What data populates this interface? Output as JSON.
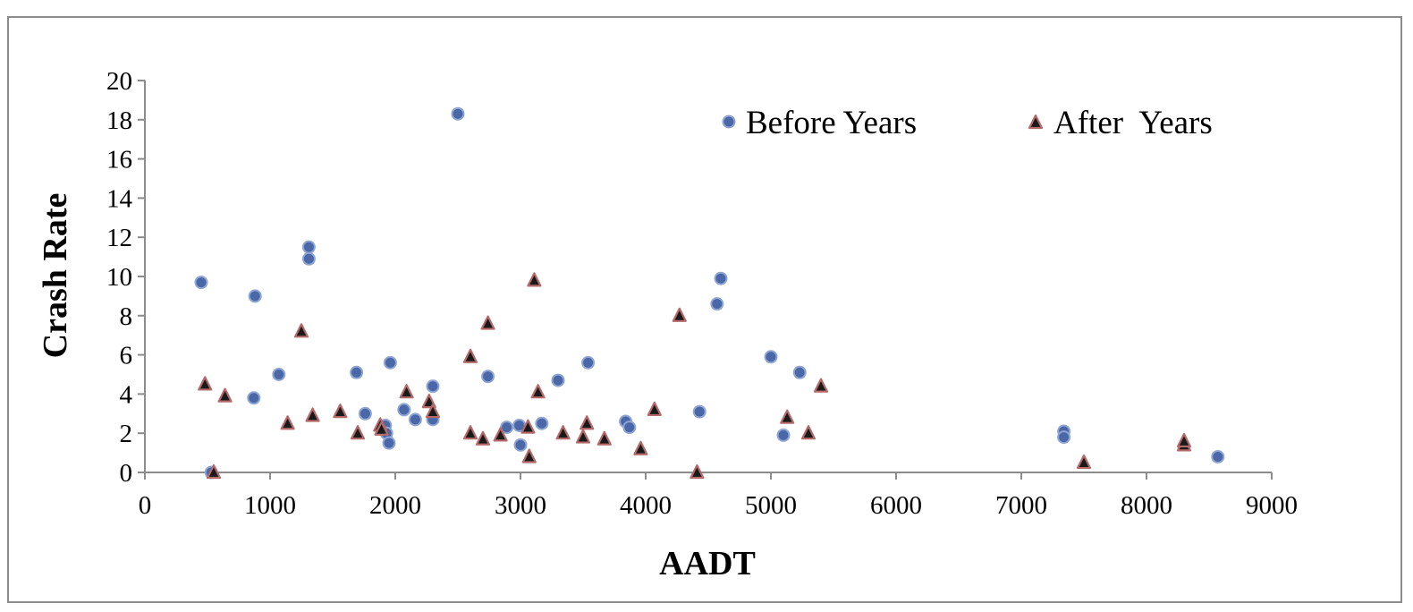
{
  "chart_data": {
    "type": "scatter",
    "title": "",
    "xlabel": "AADT",
    "ylabel": "Crash Rate",
    "xlim": [
      0,
      9000
    ],
    "ylim": [
      0,
      20
    ],
    "xticks": [
      0,
      1000,
      2000,
      3000,
      4000,
      5000,
      6000,
      7000,
      8000,
      9000
    ],
    "yticks": [
      0,
      2,
      4,
      6,
      8,
      10,
      12,
      14,
      16,
      18,
      20
    ],
    "grid": false,
    "legend_position": "top-right",
    "series": [
      {
        "name": "Before Years",
        "marker": "circle",
        "color": "#4a67a8",
        "edge_color": "#8fa6d4",
        "points": [
          [
            450,
            9.7
          ],
          [
            530,
            0
          ],
          [
            870,
            3.8
          ],
          [
            880,
            9.0
          ],
          [
            1070,
            5.0
          ],
          [
            1310,
            11.5
          ],
          [
            1310,
            10.9
          ],
          [
            1690,
            5.1
          ],
          [
            1760,
            3.0
          ],
          [
            1920,
            2.4
          ],
          [
            1930,
            2.0
          ],
          [
            1950,
            1.5
          ],
          [
            1960,
            5.6
          ],
          [
            2070,
            3.2
          ],
          [
            2160,
            2.7
          ],
          [
            2300,
            4.4
          ],
          [
            2300,
            2.7
          ],
          [
            2500,
            18.3
          ],
          [
            2740,
            4.9
          ],
          [
            2890,
            2.3
          ],
          [
            2990,
            2.4
          ],
          [
            3000,
            1.4
          ],
          [
            3170,
            2.5
          ],
          [
            3300,
            4.7
          ],
          [
            3540,
            5.6
          ],
          [
            3840,
            2.6
          ],
          [
            3870,
            2.3
          ],
          [
            4430,
            3.1
          ],
          [
            4570,
            8.6
          ],
          [
            4600,
            9.9
          ],
          [
            5000,
            5.9
          ],
          [
            5100,
            1.9
          ],
          [
            5230,
            5.1
          ],
          [
            7340,
            2.1
          ],
          [
            7340,
            1.8
          ],
          [
            8570,
            0.8
          ]
        ]
      },
      {
        "name": "After  Years",
        "marker": "triangle",
        "color": "#1a1a1a",
        "edge_color": "#b56a6a",
        "points": [
          [
            480,
            4.5
          ],
          [
            550,
            0
          ],
          [
            640,
            3.9
          ],
          [
            1140,
            2.5
          ],
          [
            1250,
            7.2
          ],
          [
            1340,
            2.9
          ],
          [
            1560,
            3.1
          ],
          [
            1700,
            2.0
          ],
          [
            1880,
            2.4
          ],
          [
            1890,
            2.2
          ],
          [
            2090,
            4.1
          ],
          [
            2270,
            3.6
          ],
          [
            2300,
            3.1
          ],
          [
            2600,
            5.9
          ],
          [
            2600,
            2.0
          ],
          [
            2700,
            1.7
          ],
          [
            2740,
            7.6
          ],
          [
            2840,
            1.9
          ],
          [
            3060,
            2.3
          ],
          [
            3070,
            0.8
          ],
          [
            3110,
            9.8
          ],
          [
            3140,
            4.1
          ],
          [
            3340,
            2.0
          ],
          [
            3500,
            1.8
          ],
          [
            3530,
            2.5
          ],
          [
            3670,
            1.7
          ],
          [
            3960,
            1.2
          ],
          [
            4070,
            3.2
          ],
          [
            4270,
            8.0
          ],
          [
            4410,
            0
          ],
          [
            5130,
            2.8
          ],
          [
            5300,
            2.0
          ],
          [
            5400,
            4.4
          ],
          [
            7500,
            0.5
          ],
          [
            8300,
            1.4
          ],
          [
            8300,
            1.6
          ]
        ]
      }
    ]
  }
}
